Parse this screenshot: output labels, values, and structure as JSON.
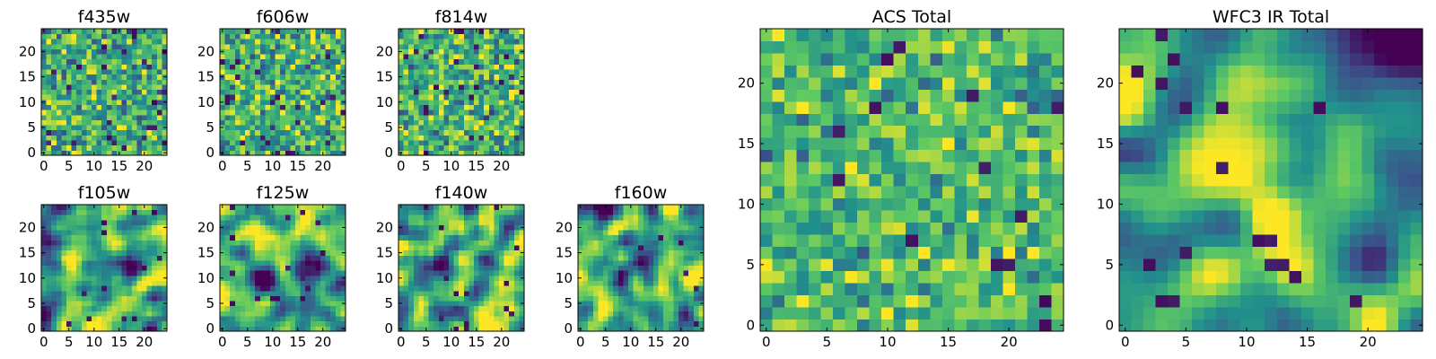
{
  "figure": {
    "colormap": "viridis",
    "colormap_stops": [
      "#440154",
      "#3b528b",
      "#21918c",
      "#5ec962",
      "#fde725"
    ]
  },
  "chart_data": [
    {
      "type": "heatmap",
      "title": "f435w",
      "grid": [
        25,
        25
      ],
      "xlim": [
        0,
        24
      ],
      "ylim": [
        0,
        24
      ],
      "xticks": [
        "0",
        "5",
        "10",
        "15",
        "20"
      ],
      "yticks": [
        "0",
        "5",
        "10",
        "15",
        "20"
      ],
      "smoothness": 0,
      "mean": 0.62,
      "spread": 0.2,
      "dark_fraction": 0.03
    },
    {
      "type": "heatmap",
      "title": "f606w",
      "grid": [
        25,
        25
      ],
      "xlim": [
        0,
        24
      ],
      "ylim": [
        0,
        24
      ],
      "xticks": [
        "0",
        "5",
        "10",
        "15",
        "20"
      ],
      "yticks": [
        "0",
        "5",
        "10",
        "15",
        "20"
      ],
      "smoothness": 0,
      "mean": 0.64,
      "spread": 0.2,
      "dark_fraction": 0.03
    },
    {
      "type": "heatmap",
      "title": "f814w",
      "grid": [
        25,
        25
      ],
      "xlim": [
        0,
        24
      ],
      "ylim": [
        0,
        24
      ],
      "xticks": [
        "0",
        "5",
        "10",
        "15",
        "20"
      ],
      "yticks": [
        "0",
        "5",
        "10",
        "15",
        "20"
      ],
      "smoothness": 0,
      "mean": 0.65,
      "spread": 0.2,
      "dark_fraction": 0.03
    },
    {
      "type": "heatmap",
      "title": "f105w",
      "grid": [
        25,
        25
      ],
      "xlim": [
        0,
        24
      ],
      "ylim": [
        0,
        24
      ],
      "xticks": [
        "0",
        "5",
        "10",
        "15",
        "20"
      ],
      "yticks": [
        "0",
        "5",
        "10",
        "15",
        "20"
      ],
      "smoothness": 2,
      "mean": 0.6,
      "spread": 0.24,
      "dark_fraction": 0.02
    },
    {
      "type": "heatmap",
      "title": "f125w",
      "grid": [
        25,
        25
      ],
      "xlim": [
        0,
        24
      ],
      "ylim": [
        0,
        24
      ],
      "xticks": [
        "0",
        "5",
        "10",
        "15",
        "20"
      ],
      "yticks": [
        "0",
        "5",
        "10",
        "15",
        "20"
      ],
      "smoothness": 2,
      "mean": 0.6,
      "spread": 0.24,
      "dark_fraction": 0.02
    },
    {
      "type": "heatmap",
      "title": "f140w",
      "grid": [
        25,
        25
      ],
      "xlim": [
        0,
        24
      ],
      "ylim": [
        0,
        24
      ],
      "xticks": [
        "0",
        "5",
        "10",
        "15",
        "20"
      ],
      "yticks": [
        "0",
        "5",
        "10",
        "15",
        "20"
      ],
      "smoothness": 2,
      "mean": 0.62,
      "spread": 0.24,
      "dark_fraction": 0.02
    },
    {
      "type": "heatmap",
      "title": "f160w",
      "grid": [
        25,
        25
      ],
      "xlim": [
        0,
        24
      ],
      "ylim": [
        0,
        24
      ],
      "xticks": [
        "0",
        "5",
        "10",
        "15",
        "20"
      ],
      "yticks": [
        "0",
        "5",
        "10",
        "15",
        "20"
      ],
      "smoothness": 2,
      "mean": 0.6,
      "spread": 0.24,
      "dark_fraction": 0.02
    },
    {
      "type": "heatmap",
      "title": "ACS Total",
      "grid": [
        25,
        25
      ],
      "xlim": [
        0,
        24
      ],
      "ylim": [
        0,
        24
      ],
      "xticks": [
        "0",
        "5",
        "10",
        "15",
        "20"
      ],
      "yticks": [
        "0",
        "5",
        "10",
        "15",
        "20"
      ],
      "smoothness": 0,
      "mean": 0.68,
      "spread": 0.16,
      "dark_fraction": 0.025
    },
    {
      "type": "heatmap",
      "title": "WFC3 IR Total",
      "grid": [
        25,
        25
      ],
      "xlim": [
        0,
        24
      ],
      "ylim": [
        0,
        24
      ],
      "xticks": [
        "0",
        "5",
        "10",
        "15",
        "20"
      ],
      "yticks": [
        "0",
        "5",
        "10",
        "15",
        "20"
      ],
      "smoothness": 3,
      "mean": 0.6,
      "spread": 0.22,
      "dark_fraction": 0.02,
      "bright_center": [
        12,
        10
      ]
    }
  ]
}
